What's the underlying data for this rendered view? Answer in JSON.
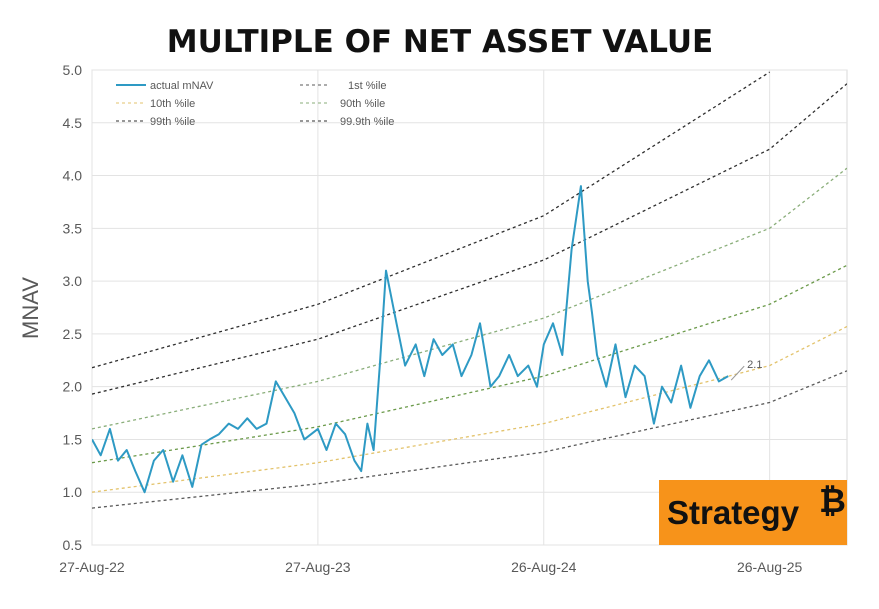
{
  "chart_data": {
    "type": "line",
    "title": "MULTIPLE OF NET ASSET VALUE",
    "ylabel": "MNAV",
    "xlabel": "",
    "x_range": [
      "2022-08-27",
      "2025-12-29"
    ],
    "ylim": [
      0.5,
      5.0
    ],
    "y_ticks": [
      "0.5",
      "1.0",
      "1.5",
      "2.0",
      "2.5",
      "3.0",
      "3.5",
      "4.0",
      "4.5",
      "5.0"
    ],
    "x_ticks": [
      {
        "date": "2022-08-27",
        "label": "27-Aug-22"
      },
      {
        "date": "2023-08-27",
        "label": "27-Aug-23"
      },
      {
        "date": "2024-08-26",
        "label": "26-Aug-24"
      },
      {
        "date": "2025-08-26",
        "label": "26-Aug-25"
      }
    ],
    "grid": true,
    "legend_position": "top-left",
    "series": [
      {
        "key": "actual",
        "name": "actual mNAV",
        "color": "#2e9ac4",
        "style": "solid"
      },
      {
        "key": "p1",
        "name": "1st %ile",
        "color": "#5a5a5a",
        "style": "dashed",
        "x": [
          "2022-08-27",
          "2023-08-27",
          "2024-08-26",
          "2025-08-26",
          "2025-12-29"
        ],
        "y": [
          0.85,
          1.08,
          1.38,
          1.85,
          2.15
        ]
      },
      {
        "key": "p10",
        "name": "10th %ile",
        "color": "#e3c36c",
        "style": "dashed",
        "x": [
          "2022-08-27",
          "2023-08-27",
          "2024-08-26",
          "2025-08-26",
          "2025-12-29"
        ],
        "y": [
          1.0,
          1.28,
          1.65,
          2.2,
          2.57
        ]
      },
      {
        "key": "p50",
        "name": "",
        "color": "#6b9a4a",
        "style": "dashed",
        "x": [
          "2022-08-27",
          "2023-08-27",
          "2024-08-26",
          "2025-08-26",
          "2025-12-29"
        ],
        "y": [
          1.28,
          1.62,
          2.1,
          2.78,
          3.15
        ]
      },
      {
        "key": "p90",
        "name": "90th %ile",
        "color": "#8aae7a",
        "style": "dashed",
        "x": [
          "2022-08-27",
          "2023-08-27",
          "2024-08-26",
          "2025-08-26",
          "2025-12-29"
        ],
        "y": [
          1.6,
          2.05,
          2.65,
          3.5,
          4.07
        ]
      },
      {
        "key": "p99",
        "name": "99th %ile",
        "color": "#2f2f2f",
        "style": "dashed",
        "x": [
          "2022-08-27",
          "2023-08-27",
          "2024-08-26",
          "2025-08-26",
          "2025-12-29"
        ],
        "y": [
          1.93,
          2.45,
          3.2,
          4.25,
          4.87
        ]
      },
      {
        "key": "p999",
        "name": "99.9th %ile",
        "color": "#2f2f2f",
        "style": "dashed",
        "x": [
          "2022-08-27",
          "2023-08-27",
          "2024-08-26",
          "2025-08-26"
        ],
        "y": [
          2.18,
          2.78,
          3.62,
          4.98
        ]
      }
    ],
    "actual_data": {
      "x": [
        "2022-08-27",
        "2022-09-10",
        "2022-09-25",
        "2022-10-08",
        "2022-10-22",
        "2022-11-05",
        "2022-11-20",
        "2022-12-05",
        "2022-12-20",
        "2023-01-05",
        "2023-01-20",
        "2023-02-05",
        "2023-02-20",
        "2023-03-05",
        "2023-03-20",
        "2023-04-05",
        "2023-04-20",
        "2023-05-05",
        "2023-05-20",
        "2023-06-05",
        "2023-06-20",
        "2023-07-05",
        "2023-07-20",
        "2023-08-05",
        "2023-08-27",
        "2023-09-10",
        "2023-09-25",
        "2023-10-10",
        "2023-10-25",
        "2023-11-05",
        "2023-11-15",
        "2023-11-25",
        "2023-12-05",
        "2023-12-15",
        "2024-01-01",
        "2024-01-15",
        "2024-02-01",
        "2024-02-15",
        "2024-03-01",
        "2024-03-15",
        "2024-04-01",
        "2024-04-15",
        "2024-05-01",
        "2024-05-15",
        "2024-06-01",
        "2024-06-15",
        "2024-07-01",
        "2024-07-15",
        "2024-08-01",
        "2024-08-15",
        "2024-08-26",
        "2024-09-10",
        "2024-09-25",
        "2024-10-10",
        "2024-10-25",
        "2024-11-05",
        "2024-11-12",
        "2024-11-20",
        "2024-12-05",
        "2024-12-20",
        "2025-01-05",
        "2025-01-20",
        "2025-02-05",
        "2025-02-20",
        "2025-03-05",
        "2025-03-20",
        "2025-04-05",
        "2025-04-20",
        "2025-05-05",
        "2025-05-20",
        "2025-06-05",
        "2025-06-20"
      ],
      "y": [
        1.5,
        1.35,
        1.6,
        1.3,
        1.4,
        1.2,
        1.0,
        1.3,
        1.4,
        1.1,
        1.35,
        1.05,
        1.45,
        1.5,
        1.55,
        1.65,
        1.6,
        1.7,
        1.6,
        1.65,
        2.05,
        1.9,
        1.75,
        1.5,
        1.6,
        1.4,
        1.65,
        1.55,
        1.3,
        1.2,
        1.65,
        1.4,
        2.2,
        3.1,
        2.6,
        2.2,
        2.4,
        2.1,
        2.45,
        2.3,
        2.4,
        2.1,
        2.3,
        2.6,
        2.0,
        2.1,
        2.3,
        2.1,
        2.2,
        2.0,
        2.4,
        2.6,
        2.3,
        3.3,
        3.9,
        3.0,
        2.7,
        2.3,
        2.0,
        2.4,
        1.9,
        2.2,
        2.1,
        1.65,
        2.0,
        1.85,
        2.2,
        1.8,
        2.1,
        2.25,
        2.05,
        2.1
      ]
    },
    "annotation": {
      "date": "2025-06-20",
      "value": 2.1,
      "label": "2.1"
    }
  },
  "logo": {
    "text": "Strategy",
    "symbol": "₿",
    "background": "#f7931a",
    "text_color": "#111111"
  }
}
